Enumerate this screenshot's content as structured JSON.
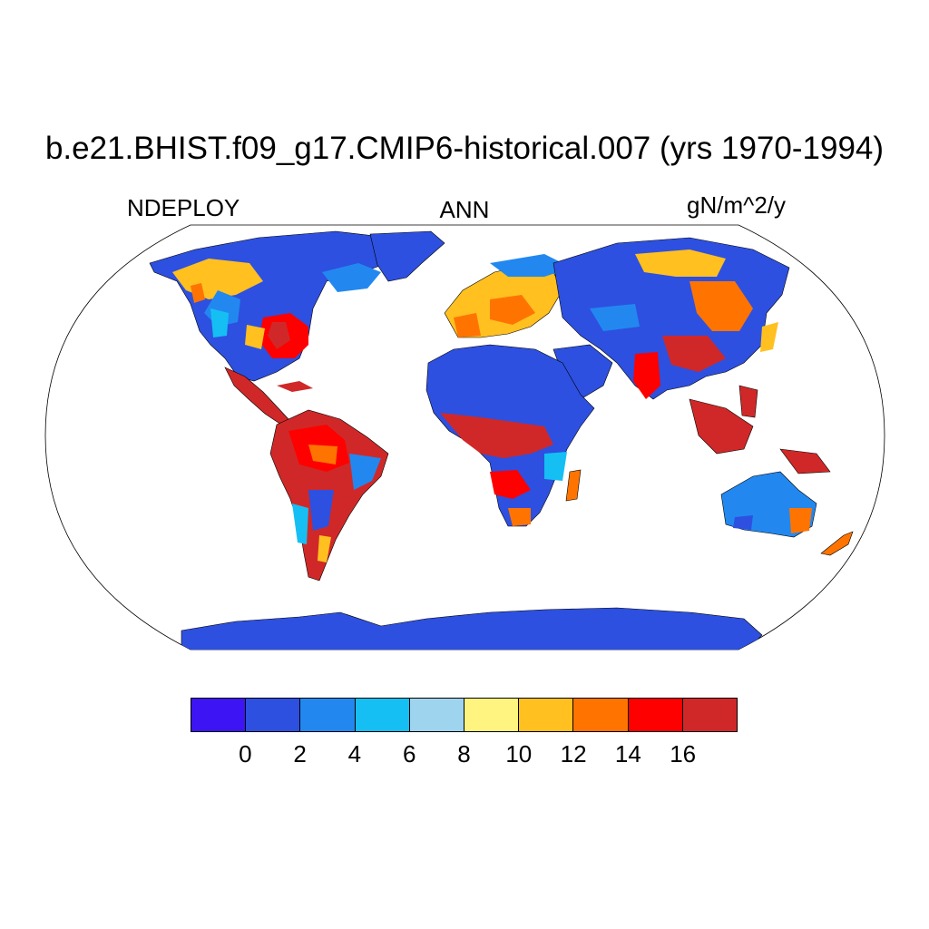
{
  "title": "b.e21.BHIST.f09_g17.CMIP6-historical.007 (yrs 1970-1994)",
  "variable": "NDEPLOY",
  "season": "ANN",
  "units": "gN/m^2/y",
  "colorbar": {
    "colors": [
      "#3d14f4",
      "#2d50e0",
      "#2288f0",
      "#15bff4",
      "#9fd4ee",
      "#fff480",
      "#ffc020",
      "#ff7400",
      "#ff0000",
      "#d02828"
    ],
    "tick_labels": [
      "0",
      "2",
      "4",
      "6",
      "8",
      "10",
      "12",
      "14",
      "16"
    ]
  },
  "map": {
    "projection": "robinson",
    "ocean_color": "#ffffff",
    "coastline_color": "#000000"
  }
}
